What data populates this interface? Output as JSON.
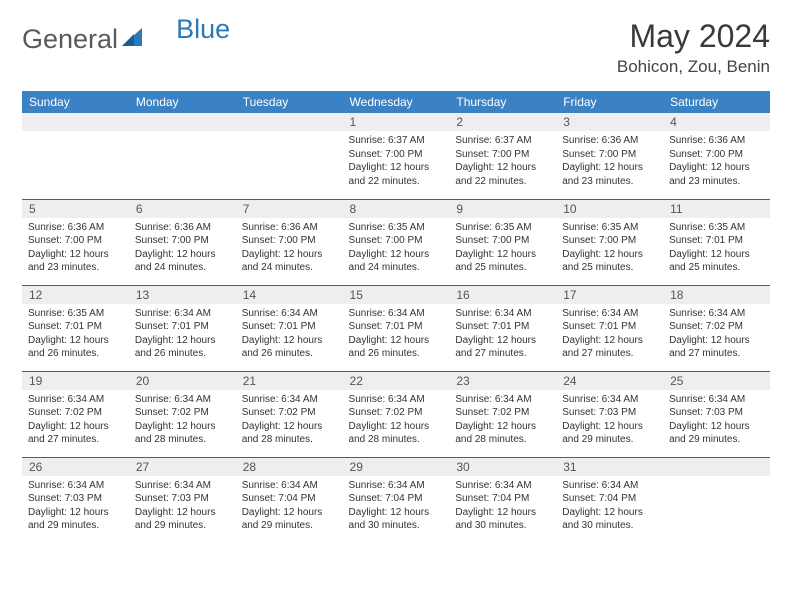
{
  "brand": {
    "part1": "General",
    "part2": "Blue"
  },
  "title": "May 2024",
  "location": "Bohicon, Zou, Benin",
  "header_bg": "#3b82c4",
  "daynames": [
    "Sunday",
    "Monday",
    "Tuesday",
    "Wednesday",
    "Thursday",
    "Friday",
    "Saturday"
  ],
  "weeks": [
    [
      null,
      null,
      null,
      {
        "n": "1",
        "sr": "6:37 AM",
        "ss": "7:00 PM",
        "dl": "12 hours and 22 minutes."
      },
      {
        "n": "2",
        "sr": "6:37 AM",
        "ss": "7:00 PM",
        "dl": "12 hours and 22 minutes."
      },
      {
        "n": "3",
        "sr": "6:36 AM",
        "ss": "7:00 PM",
        "dl": "12 hours and 23 minutes."
      },
      {
        "n": "4",
        "sr": "6:36 AM",
        "ss": "7:00 PM",
        "dl": "12 hours and 23 minutes."
      }
    ],
    [
      {
        "n": "5",
        "sr": "6:36 AM",
        "ss": "7:00 PM",
        "dl": "12 hours and 23 minutes."
      },
      {
        "n": "6",
        "sr": "6:36 AM",
        "ss": "7:00 PM",
        "dl": "12 hours and 24 minutes."
      },
      {
        "n": "7",
        "sr": "6:36 AM",
        "ss": "7:00 PM",
        "dl": "12 hours and 24 minutes."
      },
      {
        "n": "8",
        "sr": "6:35 AM",
        "ss": "7:00 PM",
        "dl": "12 hours and 24 minutes."
      },
      {
        "n": "9",
        "sr": "6:35 AM",
        "ss": "7:00 PM",
        "dl": "12 hours and 25 minutes."
      },
      {
        "n": "10",
        "sr": "6:35 AM",
        "ss": "7:00 PM",
        "dl": "12 hours and 25 minutes."
      },
      {
        "n": "11",
        "sr": "6:35 AM",
        "ss": "7:01 PM",
        "dl": "12 hours and 25 minutes."
      }
    ],
    [
      {
        "n": "12",
        "sr": "6:35 AM",
        "ss": "7:01 PM",
        "dl": "12 hours and 26 minutes."
      },
      {
        "n": "13",
        "sr": "6:34 AM",
        "ss": "7:01 PM",
        "dl": "12 hours and 26 minutes."
      },
      {
        "n": "14",
        "sr": "6:34 AM",
        "ss": "7:01 PM",
        "dl": "12 hours and 26 minutes."
      },
      {
        "n": "15",
        "sr": "6:34 AM",
        "ss": "7:01 PM",
        "dl": "12 hours and 26 minutes."
      },
      {
        "n": "16",
        "sr": "6:34 AM",
        "ss": "7:01 PM",
        "dl": "12 hours and 27 minutes."
      },
      {
        "n": "17",
        "sr": "6:34 AM",
        "ss": "7:01 PM",
        "dl": "12 hours and 27 minutes."
      },
      {
        "n": "18",
        "sr": "6:34 AM",
        "ss": "7:02 PM",
        "dl": "12 hours and 27 minutes."
      }
    ],
    [
      {
        "n": "19",
        "sr": "6:34 AM",
        "ss": "7:02 PM",
        "dl": "12 hours and 27 minutes."
      },
      {
        "n": "20",
        "sr": "6:34 AM",
        "ss": "7:02 PM",
        "dl": "12 hours and 28 minutes."
      },
      {
        "n": "21",
        "sr": "6:34 AM",
        "ss": "7:02 PM",
        "dl": "12 hours and 28 minutes."
      },
      {
        "n": "22",
        "sr": "6:34 AM",
        "ss": "7:02 PM",
        "dl": "12 hours and 28 minutes."
      },
      {
        "n": "23",
        "sr": "6:34 AM",
        "ss": "7:02 PM",
        "dl": "12 hours and 28 minutes."
      },
      {
        "n": "24",
        "sr": "6:34 AM",
        "ss": "7:03 PM",
        "dl": "12 hours and 29 minutes."
      },
      {
        "n": "25",
        "sr": "6:34 AM",
        "ss": "7:03 PM",
        "dl": "12 hours and 29 minutes."
      }
    ],
    [
      {
        "n": "26",
        "sr": "6:34 AM",
        "ss": "7:03 PM",
        "dl": "12 hours and 29 minutes."
      },
      {
        "n": "27",
        "sr": "6:34 AM",
        "ss": "7:03 PM",
        "dl": "12 hours and 29 minutes."
      },
      {
        "n": "28",
        "sr": "6:34 AM",
        "ss": "7:04 PM",
        "dl": "12 hours and 29 minutes."
      },
      {
        "n": "29",
        "sr": "6:34 AM",
        "ss": "7:04 PM",
        "dl": "12 hours and 30 minutes."
      },
      {
        "n": "30",
        "sr": "6:34 AM",
        "ss": "7:04 PM",
        "dl": "12 hours and 30 minutes."
      },
      {
        "n": "31",
        "sr": "6:34 AM",
        "ss": "7:04 PM",
        "dl": "12 hours and 30 minutes."
      },
      null
    ]
  ],
  "labels": {
    "sunrise": "Sunrise:",
    "sunset": "Sunset:",
    "daylight": "Daylight:"
  },
  "style": {
    "day_bg": "#eeeeee",
    "rule_color": "#2a6aa0",
    "text_color": "#333333",
    "title_color": "#3a3a3a",
    "font_family": "Arial",
    "title_fontsize": 32,
    "location_fontsize": 17,
    "header_fontsize": 12,
    "cell_fontsize": 10
  }
}
